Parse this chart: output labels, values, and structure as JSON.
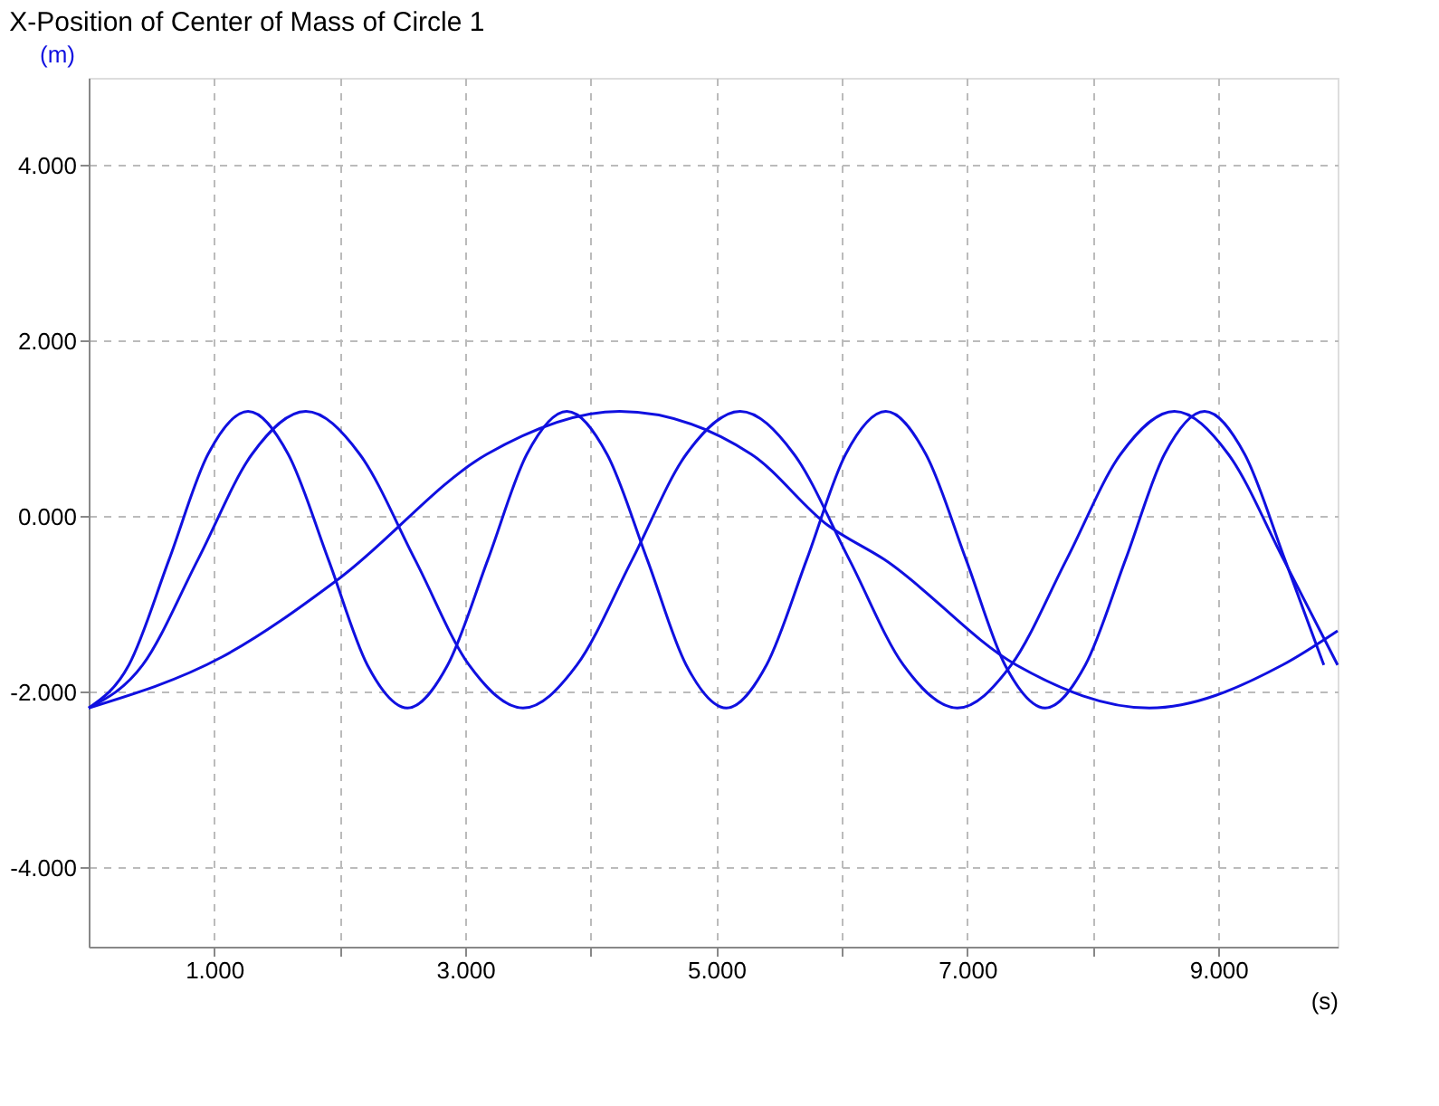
{
  "chart_data": {
    "type": "line",
    "title": "X-Position of Center of Mass of Circle 1",
    "xlabel": "(s)",
    "ylabel": "(m)",
    "xlim": [
      0,
      9.95
    ],
    "ylim": [
      -4.9,
      5.0
    ],
    "xticks": [
      {
        "value": 1,
        "label": "1.000"
      },
      {
        "value": 2,
        "label": null
      },
      {
        "value": 3,
        "label": "3.000"
      },
      {
        "value": 4,
        "label": null
      },
      {
        "value": 5,
        "label": "5.000"
      },
      {
        "value": 6,
        "label": null
      },
      {
        "value": 7,
        "label": "7.000"
      },
      {
        "value": 8,
        "label": null
      },
      {
        "value": 9,
        "label": "9.000"
      }
    ],
    "yticks": [
      {
        "value": -4,
        "label": "-4.000"
      },
      {
        "value": -2,
        "label": "-2.000"
      },
      {
        "value": 0,
        "label": "0.000"
      },
      {
        "value": 2,
        "label": "2.000"
      },
      {
        "value": 4,
        "label": "4.000"
      }
    ],
    "grid": true,
    "line_style": "solid",
    "marker": "none",
    "series": [
      {
        "color": "#1010e0",
        "x": [
          0,
          0.32,
          0.64,
          0.95,
          1.27,
          1.59,
          1.91,
          2.22,
          2.54,
          2.86,
          3.18,
          3.49,
          3.81,
          4.13,
          4.45,
          4.76,
          5.08,
          5.4,
          5.72,
          6.03,
          6.35,
          6.67,
          6.99,
          7.3,
          7.62,
          7.94,
          8.26,
          8.57,
          8.89,
          9.21,
          9.53,
          9.84
        ],
        "values": [
          -2.18,
          -1.69,
          -0.49,
          0.71,
          1.2,
          0.71,
          -0.49,
          -1.69,
          -2.18,
          -1.69,
          -0.49,
          0.71,
          1.2,
          0.71,
          -0.49,
          -1.69,
          -2.18,
          -1.69,
          -0.49,
          0.71,
          1.2,
          0.71,
          -0.49,
          -1.69,
          -2.18,
          -1.69,
          -0.49,
          0.71,
          1.2,
          0.71,
          -0.49,
          -1.69
        ]
      },
      {
        "color": "#1010e0",
        "x": [
          0,
          0.43,
          0.87,
          1.3,
          1.73,
          2.16,
          2.6,
          3.03,
          3.46,
          3.89,
          4.33,
          4.76,
          5.19,
          5.62,
          6.06,
          6.49,
          6.92,
          7.35,
          7.79,
          8.22,
          8.65,
          9.08,
          9.52,
          9.95
        ],
        "values": [
          -2.18,
          -1.69,
          -0.49,
          0.71,
          1.2,
          0.71,
          -0.49,
          -1.69,
          -2.18,
          -1.69,
          -0.49,
          0.71,
          1.2,
          0.71,
          -0.49,
          -1.69,
          -2.18,
          -1.69,
          -0.49,
          0.71,
          1.2,
          0.71,
          -0.49,
          -1.69
        ]
      },
      {
        "color": "#1010e0",
        "x": [
          0,
          1.06,
          2.0,
          3.17,
          4.23,
          5.28,
          5.89,
          6.34,
          7.39,
          8.45,
          9.51,
          9.95
        ],
        "values": [
          -2.18,
          -1.6,
          -0.7,
          0.71,
          1.2,
          0.71,
          -0.1,
          -0.49,
          -1.69,
          -2.18,
          -1.69,
          -1.3
        ]
      }
    ]
  }
}
